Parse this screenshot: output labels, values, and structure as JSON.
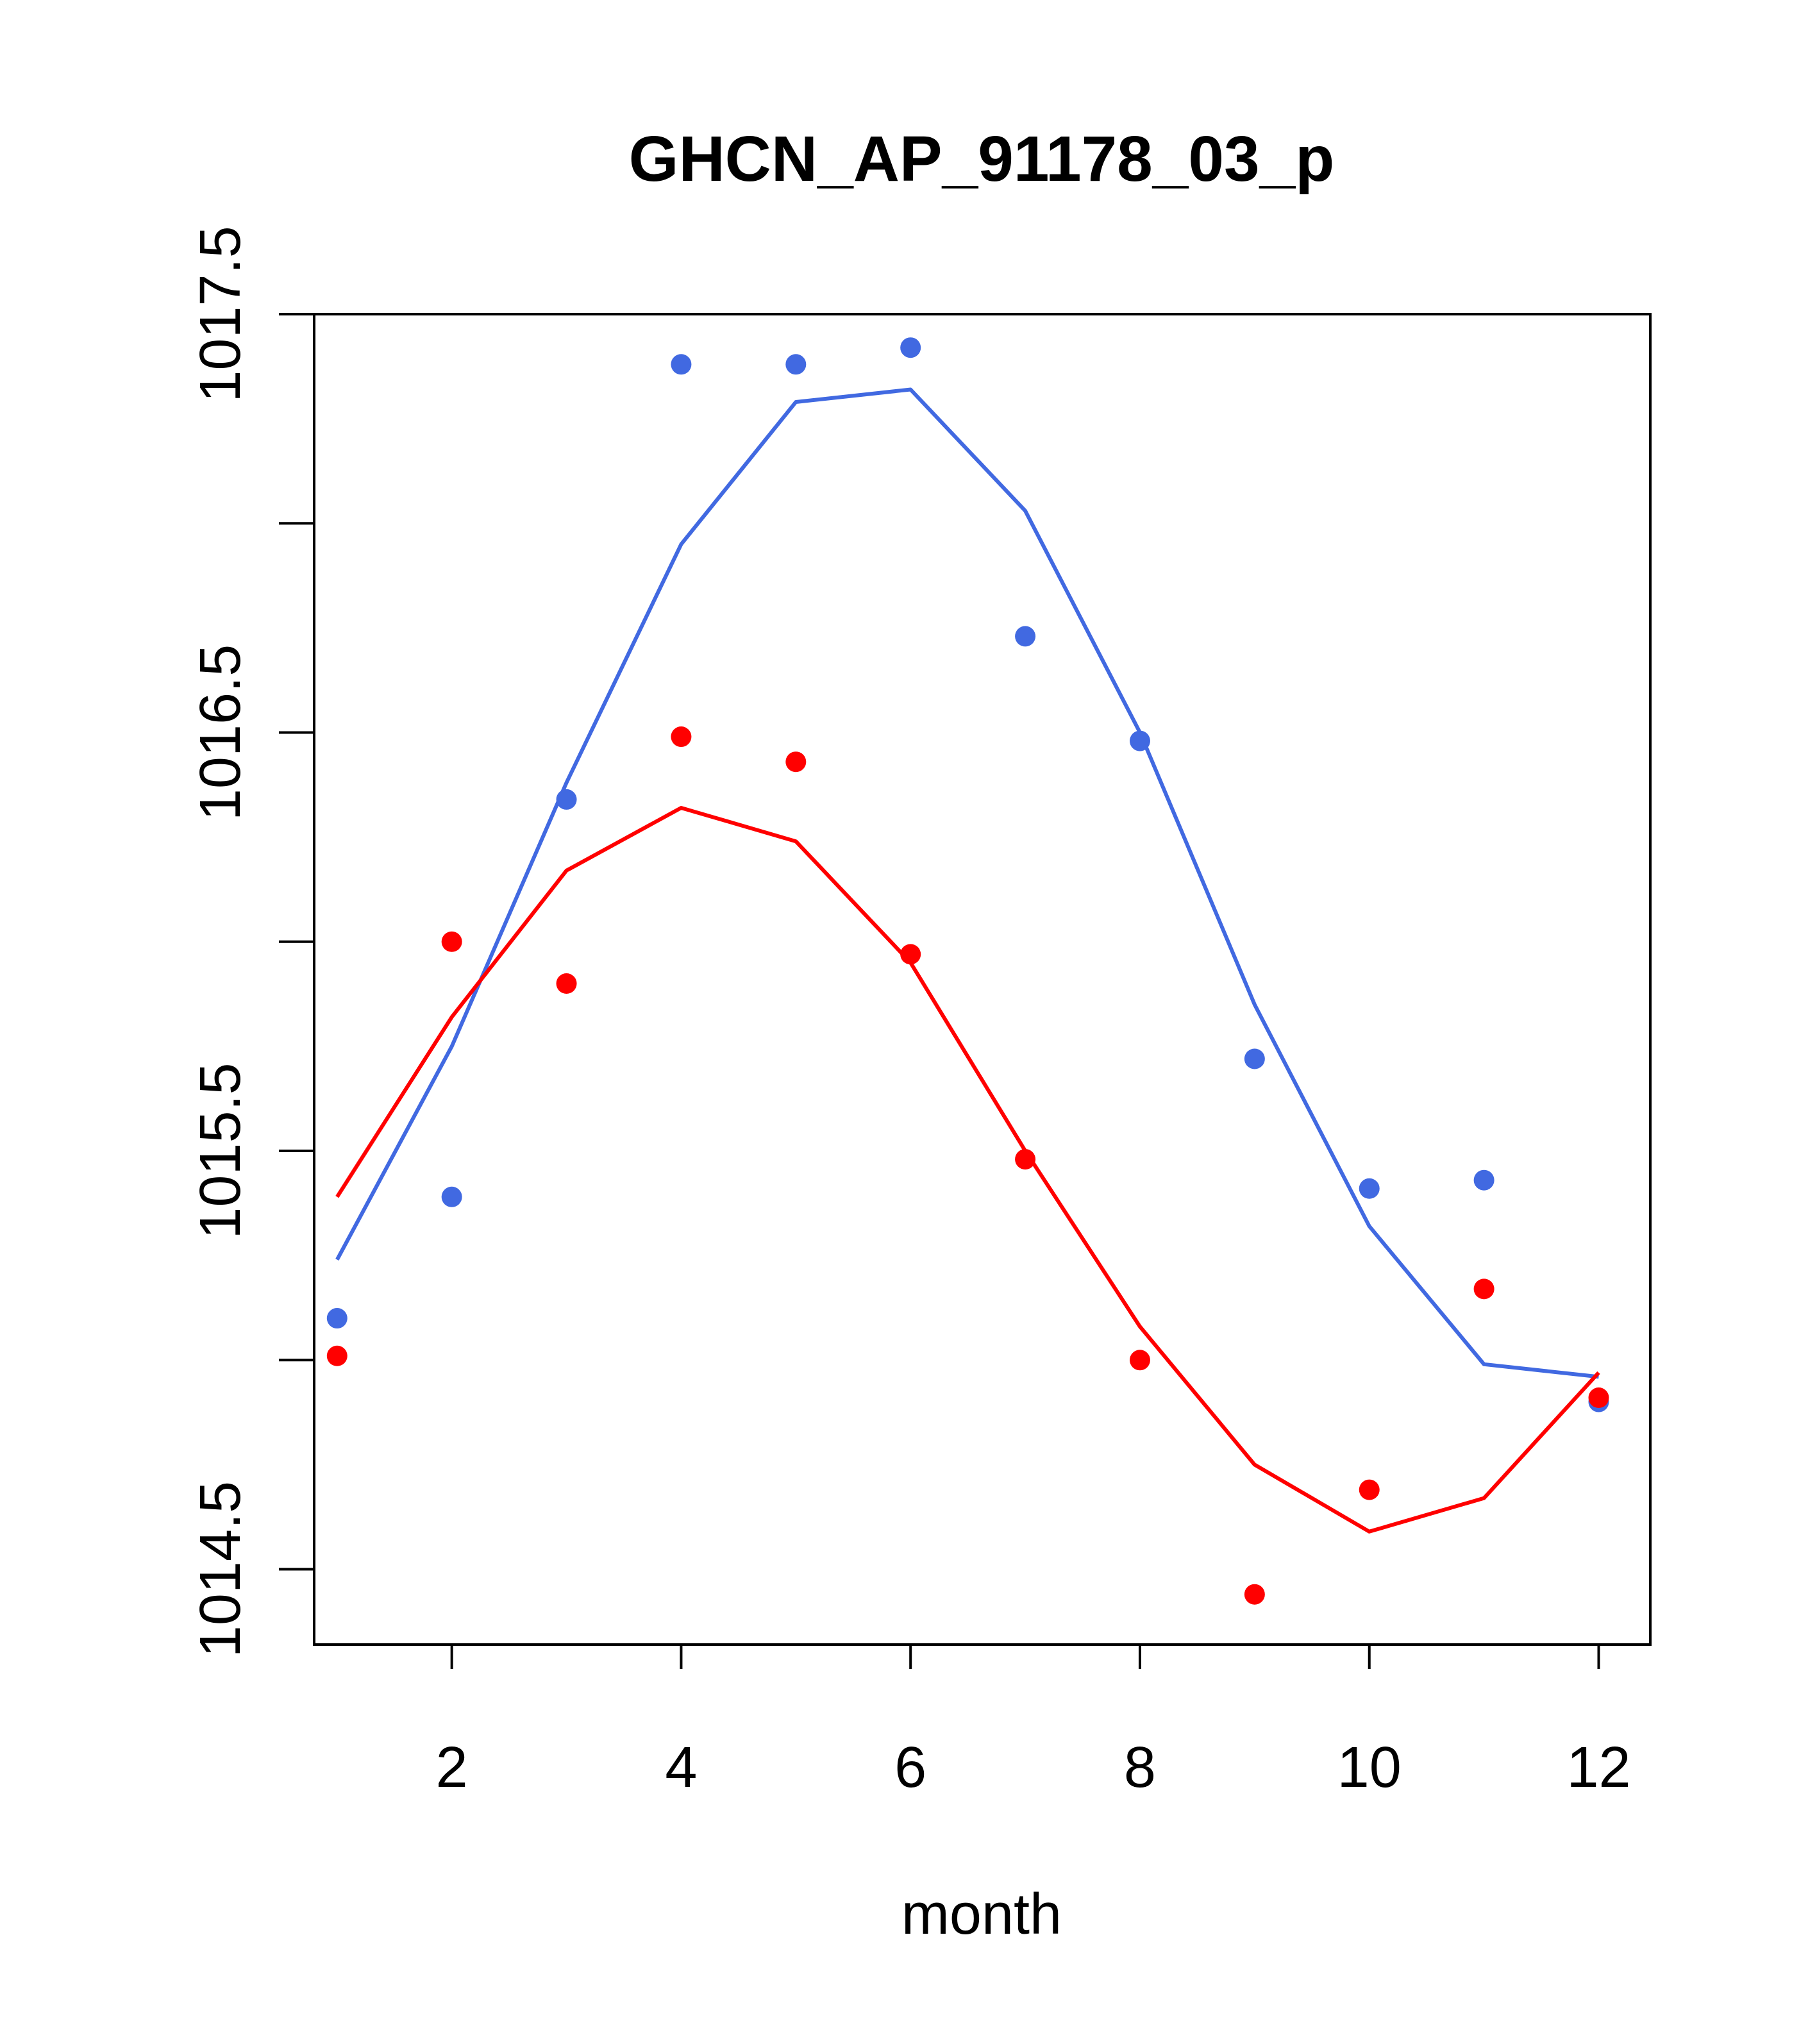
{
  "chart_data": {
    "type": "scatter",
    "title": "GHCN_AP_91178_03_p",
    "xlabel": "month",
    "ylabel": "",
    "xlim": [
      0.8,
      12.45
    ],
    "ylim": [
      1014.32,
      1017.5
    ],
    "x_ticks": [
      2,
      4,
      6,
      8,
      10,
      12
    ],
    "x_tick_labels": [
      "2",
      "4",
      "6",
      "8",
      "10",
      "12"
    ],
    "y_ticks": [
      1014.5,
      1015.0,
      1015.5,
      1016.0,
      1016.5,
      1017.0,
      1017.5
    ],
    "y_tick_labels": [
      "1014.5",
      "",
      "1015.5",
      "",
      "1016.5",
      "",
      "1017.5"
    ],
    "grid": false,
    "series": [
      {
        "name": "blue",
        "color": "#4169E1",
        "x": [
          1,
          2,
          3,
          4,
          5,
          6,
          7,
          8,
          9,
          10,
          11,
          12
        ],
        "points": [
          1015.1,
          1015.39,
          1016.34,
          1017.38,
          1017.38,
          1017.42,
          1016.73,
          1016.48,
          1015.72,
          1015.41,
          1015.43,
          1014.9
        ],
        "fit": [
          1015.24,
          1015.75,
          1016.38,
          1016.95,
          1017.29,
          1017.32,
          1017.03,
          1016.5,
          1015.85,
          1015.32,
          1014.99,
          1014.96
        ]
      },
      {
        "name": "red",
        "color": "#FF0000",
        "x": [
          1,
          2,
          3,
          4,
          5,
          6,
          7,
          8,
          9,
          10,
          11,
          12
        ],
        "points": [
          1015.01,
          1016.0,
          1015.9,
          1016.49,
          1016.43,
          1015.97,
          1015.48,
          1015.0,
          1014.44,
          1014.69,
          1015.17,
          1014.91
        ],
        "fit": [
          1015.39,
          1015.82,
          1016.17,
          1016.32,
          1016.24,
          1015.95,
          1015.5,
          1015.08,
          1014.75,
          1014.59,
          1014.67,
          1014.97
        ]
      }
    ]
  }
}
